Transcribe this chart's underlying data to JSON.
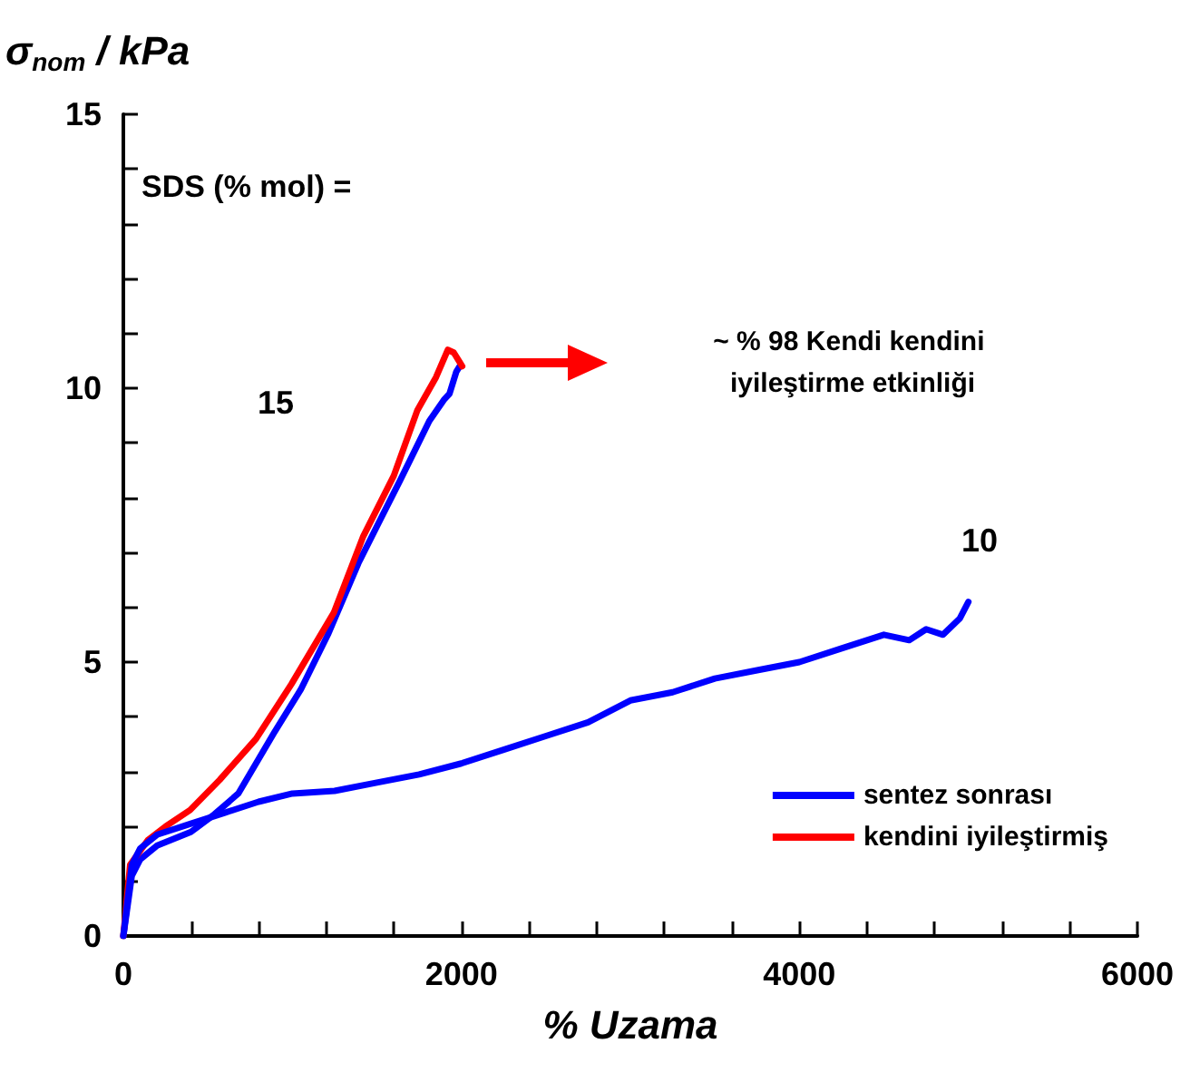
{
  "chart_data": {
    "type": "line",
    "xlabel": "% Uzama",
    "ylabel": "σ$_{nom}$ / kPa",
    "xlim": [
      0,
      6000
    ],
    "ylim": [
      0,
      15
    ],
    "xticks": [
      0,
      {
        "value": 400,
        "label": null
      },
      {
        "value": 800,
        "label": null
      },
      {
        "value": 1200,
        "label": null
      },
      {
        "value": 1600,
        "label": null
      },
      2000,
      {
        "value": 2400,
        "label": null
      },
      {
        "value": 2800,
        "label": null
      },
      {
        "value": 3200,
        "label": null
      },
      {
        "value": 3600,
        "label": null
      },
      4000,
      {
        "value": 4400,
        "label": null
      },
      {
        "value": 4800,
        "label": null
      },
      {
        "value": 5200,
        "label": null
      },
      {
        "value": 5600,
        "label": null
      },
      6000
    ],
    "yticks": [
      0,
      {
        "value": 1,
        "label": null
      },
      {
        "value": 2,
        "label": null
      },
      {
        "value": 3,
        "label": null
      },
      {
        "value": 4,
        "label": null
      },
      5,
      {
        "value": 6,
        "label": null
      },
      {
        "value": 7,
        "label": null
      },
      {
        "value": 8,
        "label": null
      },
      {
        "value": 9,
        "label": null
      },
      10,
      {
        "value": 11,
        "label": null
      },
      {
        "value": 12,
        "label": null
      },
      {
        "value": 13,
        "label": null
      },
      {
        "value": 14,
        "label": null
      },
      15
    ],
    "grid": false,
    "legend": "bottom right",
    "marker": "none",
    "line_style": "solid",
    "series": [
      {
        "name": "sentez sonrası",
        "color": "#0000ff",
        "x": [
          0,
          50,
          100,
          200,
          400,
          530,
          680,
          890,
          1050,
          1210,
          1390,
          1520,
          1635,
          1810,
          1900,
          1930,
          1970,
          1990
        ],
        "values": [
          0,
          1.1,
          1.4,
          1.65,
          1.9,
          2.2,
          2.6,
          3.7,
          4.5,
          5.5,
          6.8,
          7.6,
          8.3,
          9.4,
          9.8,
          9.9,
          10.3,
          10.4
        ]
      },
      {
        "name": "kendini iyileştirmiş",
        "color": "#ff0000",
        "x": [
          0,
          40,
          145,
          250,
          395,
          570,
          785,
          995,
          1245,
          1420,
          1600,
          1740,
          1850,
          1920,
          1955,
          2005
        ],
        "values": [
          0,
          1.3,
          1.75,
          2.0,
          2.3,
          2.85,
          3.6,
          4.6,
          5.9,
          7.3,
          8.4,
          9.6,
          10.2,
          10.7,
          10.65,
          10.4
        ]
      },
      {
        "color": "#0000ff",
        "x": [
          0,
          50,
          100,
          200,
          400,
          600,
          800,
          1000,
          1250,
          1500,
          1750,
          2000,
          2250,
          2500,
          2750,
          3000,
          3250,
          3500,
          3750,
          4000,
          4250,
          4500,
          4650,
          4750,
          4850,
          4950,
          5000
        ],
        "values": [
          0,
          1.3,
          1.6,
          1.85,
          2.05,
          2.25,
          2.45,
          2.6,
          2.65,
          2.8,
          2.95,
          3.15,
          3.4,
          3.65,
          3.9,
          4.3,
          4.45,
          4.7,
          4.85,
          5.0,
          5.25,
          5.5,
          5.4,
          5.6,
          5.5,
          5.8,
          6.1
        ]
      }
    ],
    "annotations": [
      "SDS (% mol) =",
      "15",
      "10",
      "~ % 98 Kendi kendini iyileştirme etkinliği"
    ]
  }
}
